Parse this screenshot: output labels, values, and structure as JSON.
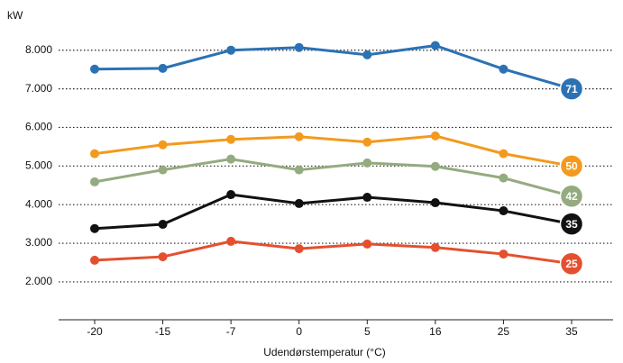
{
  "chart_data": {
    "type": "line",
    "y_label": "kW",
    "x_label": "Udendørstemperatur (°C)",
    "categories": [
      "-20",
      "-15",
      "-7",
      "0",
      "5",
      "16",
      "25",
      "35"
    ],
    "series": [
      {
        "name": "71",
        "color": "#2b72b5",
        "values": [
          7510,
          7530,
          8000,
          8070,
          7880,
          8120,
          7510,
          7000
        ]
      },
      {
        "name": "50",
        "color": "#f39a1e",
        "values": [
          5320,
          5550,
          5690,
          5760,
          5620,
          5780,
          5320,
          5000
        ]
      },
      {
        "name": "42",
        "color": "#94ab80",
        "values": [
          4590,
          4900,
          5180,
          4900,
          5080,
          4990,
          4690,
          4220
        ]
      },
      {
        "name": "35",
        "color": "#111111",
        "values": [
          3380,
          3490,
          4260,
          4030,
          4190,
          4050,
          3840,
          3500
        ]
      },
      {
        "name": "25",
        "color": "#e4502f",
        "values": [
          2560,
          2650,
          3050,
          2860,
          2980,
          2890,
          2720,
          2470
        ]
      }
    ],
    "ylim": [
      1000,
      8600
    ],
    "yticks": [
      {
        "value": 2000,
        "label": "2.000"
      },
      {
        "value": 3000,
        "label": "3.000"
      },
      {
        "value": 4000,
        "label": "4.000"
      },
      {
        "value": 5000,
        "label": "5.000"
      },
      {
        "value": 6000,
        "label": "6.000"
      },
      {
        "value": 7000,
        "label": "7.000"
      },
      {
        "value": 8000,
        "label": "8.000"
      }
    ],
    "grid": true
  }
}
